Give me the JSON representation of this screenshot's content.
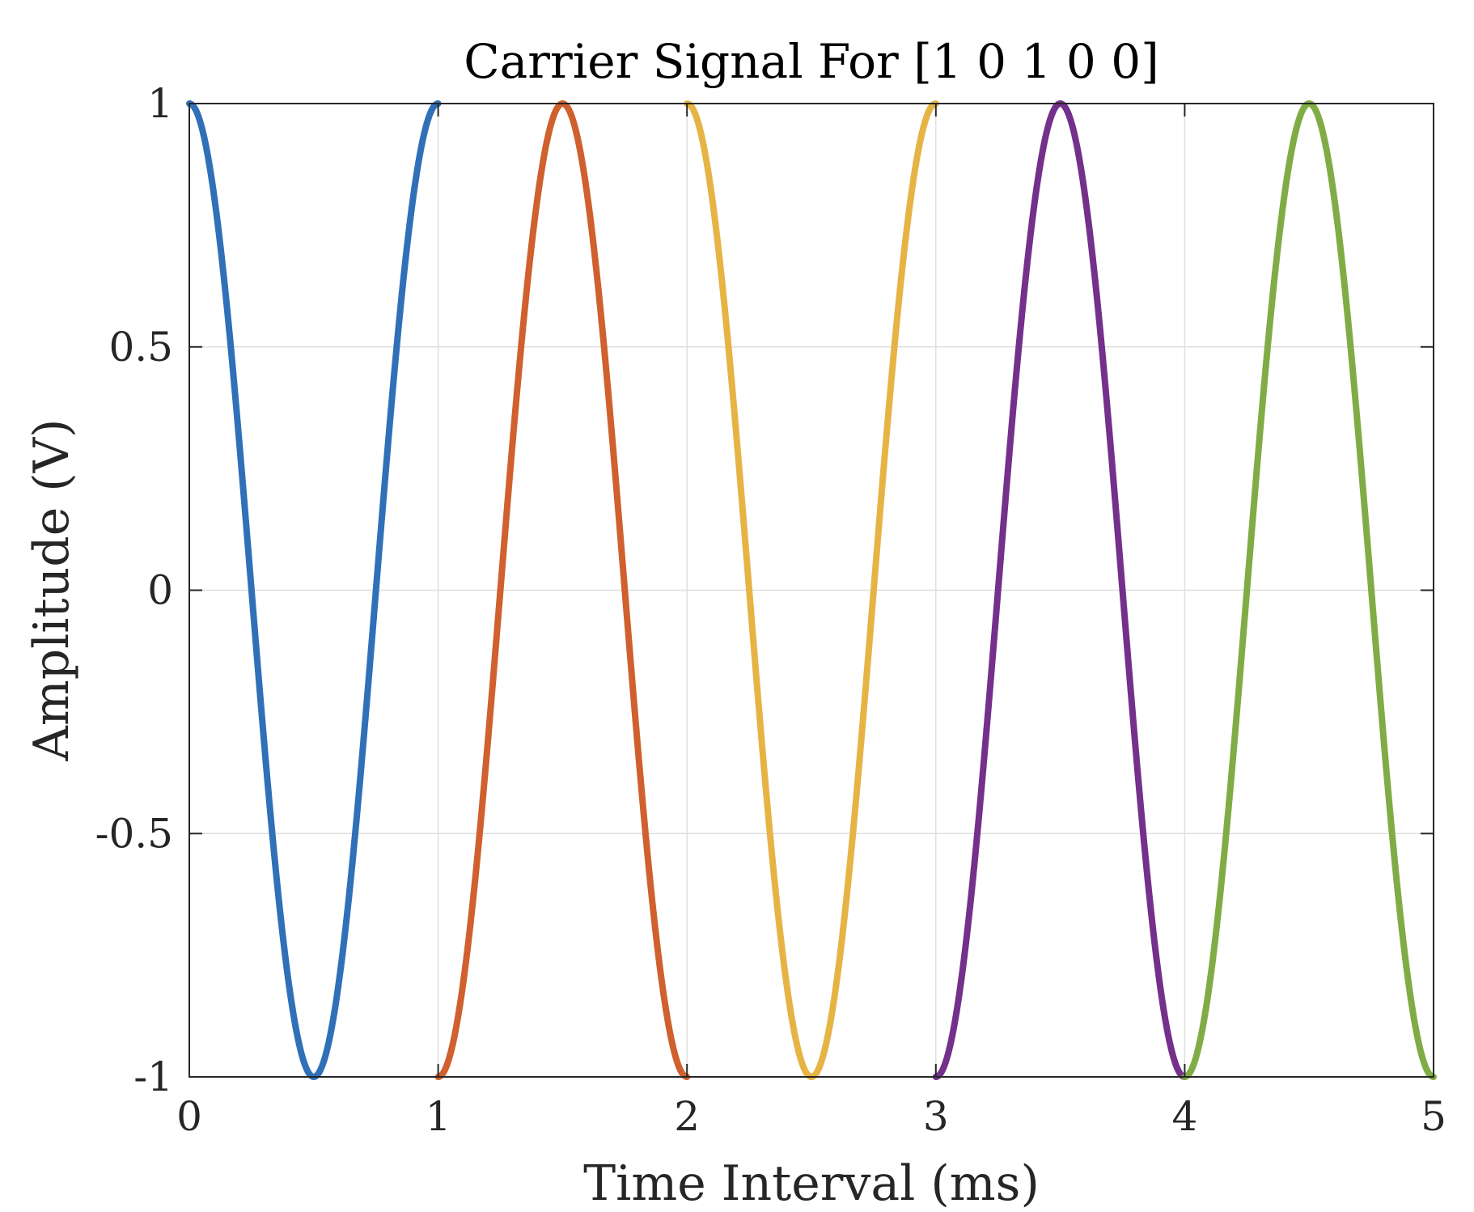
{
  "chart_data": {
    "type": "line",
    "title": "Carrier Signal For [1 0 1 0 0]",
    "xlabel": "Time Interval (ms)",
    "ylabel": "Amplitude (V)",
    "xlim": [
      0,
      5
    ],
    "ylim": [
      -1,
      1
    ],
    "xticks": [
      0,
      1,
      2,
      3,
      4,
      5
    ],
    "xtick_labels": [
      "0",
      "1",
      "2",
      "3",
      "4",
      "5"
    ],
    "yticks": [
      -1,
      -0.5,
      0,
      0.5,
      1
    ],
    "ytick_labels": [
      "-1",
      "-0.5",
      "0",
      "0.5",
      "1"
    ],
    "grid": true,
    "legend": "none",
    "series": [
      {
        "bit": 1,
        "color": "#3070B8",
        "x": [
          0,
          0.5,
          1
        ],
        "y": [
          1,
          -1,
          1
        ],
        "form": "cos(2*pi*t)"
      },
      {
        "bit": 0,
        "color": "#D0602E",
        "x": [
          1,
          1.5,
          2
        ],
        "y": [
          -1,
          1,
          -1
        ],
        "form": "-cos(2*pi*t)"
      },
      {
        "bit": 1,
        "color": "#E6B445",
        "x": [
          2,
          2.5,
          3
        ],
        "y": [
          1,
          -1,
          1
        ],
        "form": "cos(2*pi*t)"
      },
      {
        "bit": 0,
        "color": "#74308A",
        "x": [
          3,
          3.5,
          4
        ],
        "y": [
          -1,
          1,
          -1
        ],
        "form": "-cos(2*pi*t)"
      },
      {
        "bit": 0,
        "color": "#80AC45",
        "x": [
          4,
          4.5,
          5
        ],
        "y": [
          -1,
          1,
          -1
        ],
        "form": "-cos(2*pi*t)"
      }
    ],
    "colors": {
      "axis": "#262626",
      "grid": "#DFDFDF"
    }
  }
}
